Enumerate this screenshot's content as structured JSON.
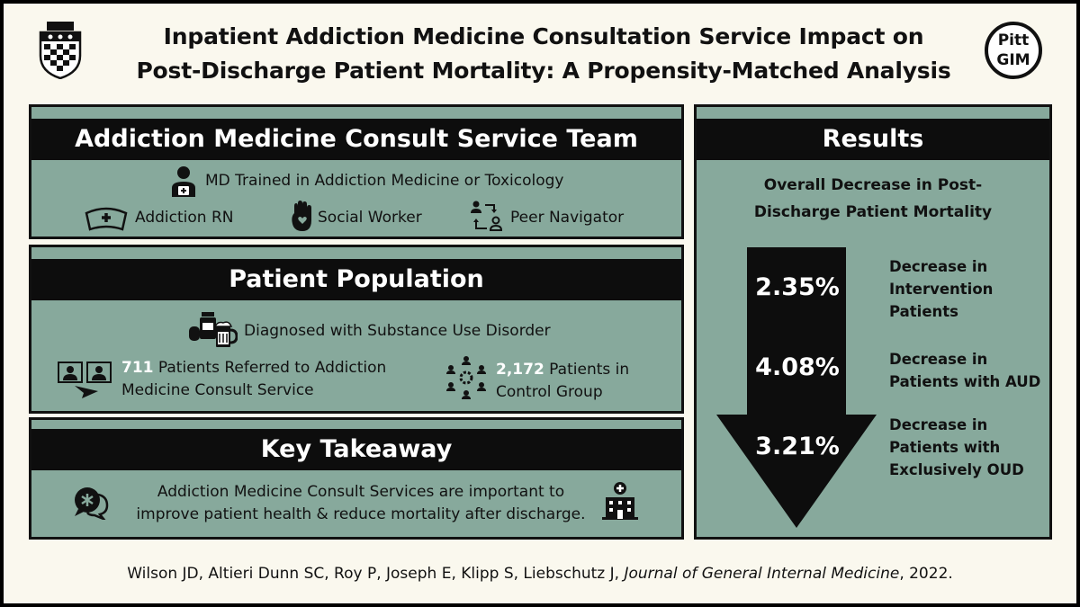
{
  "title": {
    "line1": "Inpatient Addiction Medicine Consultation Service Impact on",
    "line2": "Post-Discharge Patient Mortality: A Propensity-Matched Analysis"
  },
  "logo_right": {
    "line1": "Pitt",
    "line2": "GIM"
  },
  "team": {
    "heading": "Addiction Medicine Consult Service Team",
    "md": "MD Trained in Addiction Medicine or Toxicology",
    "rn": "Addiction RN",
    "sw": "Social Worker",
    "peer": "Peer Navigator"
  },
  "population": {
    "heading": "Patient Population",
    "diagnosed": "Diagnosed with Substance Use Disorder",
    "referred_count": "711",
    "referred_line1": " Patients Referred to Addiction",
    "referred_line2": "Medicine Consult Service",
    "control_count": "2,172",
    "control_line1": " Patients in",
    "control_line2": "Control Group"
  },
  "takeaway": {
    "heading": "Key Takeaway",
    "line1": "Addiction Medicine Consult Services are important to",
    "line2": "improve patient health & reduce mortality after discharge."
  },
  "results": {
    "heading": "Results",
    "subtitle_line1": "Overall Decrease in Post-",
    "subtitle_line2": "Discharge Patient Mortality",
    "items": [
      {
        "value": "2.35%",
        "line1": "Decrease in",
        "line2": "Intervention",
        "line3": "Patients"
      },
      {
        "value": "4.08%",
        "line1": "Decrease in",
        "line2": "Patients with AUD",
        "line3": ""
      },
      {
        "value": "3.21%",
        "line1": "Decrease in",
        "line2": "Patients with",
        "line3": "Exclusively OUD"
      }
    ]
  },
  "citation": {
    "authors": "Wilson JD, Altieri Dunn SC, Roy P, Joseph E, Klipp S, Liebschutz J, ",
    "journal": "Journal of General Internal Medicine",
    "year": ", 2022."
  },
  "colors": {
    "panel": "#87a99c",
    "bar": "#0d0d0d",
    "background": "#faf8ee"
  },
  "icons": [
    "pitt-shield-icon",
    "doctor-icon",
    "nurse-cap-icon",
    "hand-heart-icon",
    "peer-exchange-icon",
    "pill-bottle-beer-icon",
    "video-referral-icon",
    "group-network-icon",
    "speech-bubble-icon",
    "hospital-icon",
    "down-arrow-icon"
  ]
}
